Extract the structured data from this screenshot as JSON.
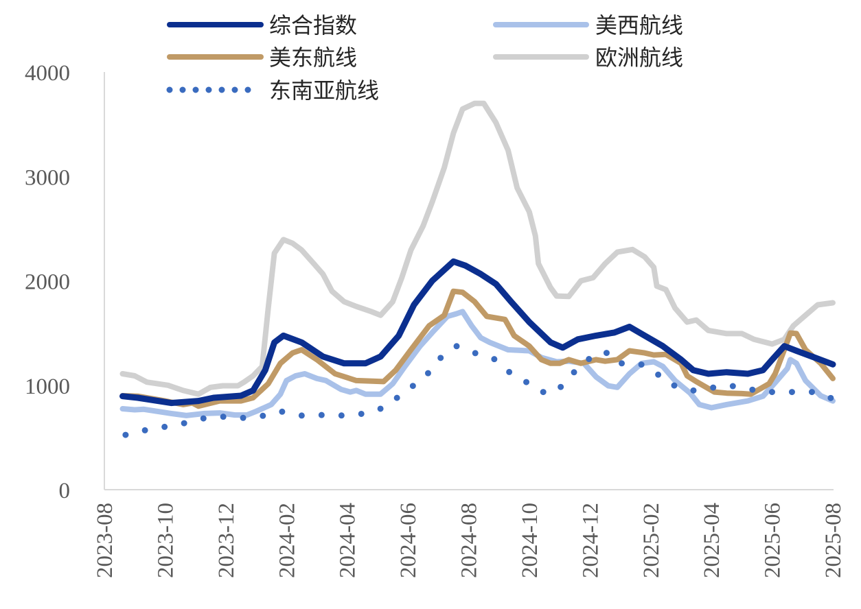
{
  "chart_data": {
    "type": "line",
    "title": "",
    "xlabel": "",
    "ylabel": "",
    "x_unit": "months since 2023-08",
    "xlim": [
      0,
      24
    ],
    "ylim": [
      0,
      4000
    ],
    "yticks": [
      "0",
      "1000",
      "2000",
      "3000",
      "4000"
    ],
    "ytick_values": [
      0,
      1000,
      2000,
      3000,
      4000
    ],
    "xticks": [
      "2023-08",
      "2023-10",
      "2023-12",
      "2024-02",
      "2024-04",
      "2024-06",
      "2024-08",
      "2024-10",
      "2024-12",
      "2025-02",
      "2025-04",
      "2025-06",
      "2025-08"
    ],
    "xtick_values": [
      0,
      2,
      4,
      6,
      8,
      10,
      12,
      14,
      16,
      18,
      20,
      22,
      24
    ],
    "grid": false,
    "legend_position": "top",
    "series": [
      {
        "name": "综合指数",
        "color": "#0b2f8f",
        "style": "solid",
        "x": [
          0.6,
          1.1,
          2.2,
          3.1,
          3.6,
          4.5,
          4.9,
          5.3,
          5.6,
          5.9,
          6.5,
          7.2,
          7.9,
          8.6,
          9.1,
          9.7,
          10.2,
          10.8,
          11.5,
          11.9,
          12.4,
          12.9,
          13.4,
          14.0,
          14.7,
          15.1,
          15.6,
          16.2,
          16.8,
          17.3,
          17.8,
          18.4,
          19.0,
          19.4,
          19.9,
          20.5,
          21.2,
          21.7,
          22.0,
          22.4,
          22.8,
          23.4,
          24.0
        ],
        "y": [
          895,
          880,
          830,
          850,
          880,
          900,
          950,
          1145,
          1410,
          1475,
          1410,
          1275,
          1210,
          1210,
          1275,
          1475,
          1770,
          2000,
          2185,
          2145,
          2065,
          1970,
          1800,
          1605,
          1410,
          1360,
          1440,
          1475,
          1505,
          1560,
          1475,
          1375,
          1245,
          1145,
          1110,
          1125,
          1110,
          1145,
          1245,
          1375,
          1330,
          1265,
          1200
        ]
      },
      {
        "name": "美西航线",
        "color": "#a9c1e9",
        "style": "solid",
        "x": [
          0.6,
          1.0,
          1.3,
          2.2,
          2.7,
          3.3,
          3.8,
          4.3,
          4.7,
          5.0,
          5.5,
          5.8,
          6.0,
          6.3,
          6.6,
          7.0,
          7.3,
          7.8,
          8.1,
          8.3,
          8.6,
          9.1,
          9.5,
          9.9,
          10.4,
          10.8,
          11.3,
          11.6,
          11.8,
          12.1,
          12.4,
          12.7,
          13.3,
          14.0,
          14.4,
          14.9,
          15.3,
          15.8,
          16.2,
          16.6,
          16.9,
          17.3,
          17.7,
          18.1,
          18.4,
          18.8,
          19.3,
          19.6,
          20.0,
          20.5,
          21.2,
          21.7,
          22.1,
          22.5,
          22.6,
          22.8,
          23.1,
          23.6,
          24.0
        ],
        "y": [
          775,
          765,
          770,
          730,
          710,
          730,
          735,
          715,
          715,
          750,
          815,
          915,
          1045,
          1090,
          1110,
          1065,
          1045,
          960,
          935,
          950,
          915,
          915,
          1015,
          1180,
          1375,
          1505,
          1660,
          1685,
          1705,
          1570,
          1455,
          1410,
          1340,
          1330,
          1265,
          1225,
          1230,
          1210,
          1080,
          995,
          980,
          1110,
          1210,
          1225,
          1180,
          1045,
          925,
          815,
          785,
          815,
          850,
          895,
          1025,
          1160,
          1245,
          1210,
          1045,
          900,
          850
        ]
      },
      {
        "name": "美东航线",
        "color": "#c09a66",
        "style": "solid",
        "x": [
          0.6,
          1.1,
          2.0,
          2.6,
          2.9,
          3.1,
          3.8,
          4.5,
          4.9,
          5.4,
          5.8,
          6.2,
          6.5,
          7.0,
          7.6,
          8.3,
          9.2,
          9.6,
          10.1,
          10.7,
          11.2,
          11.5,
          11.8,
          12.2,
          12.6,
          13.2,
          13.5,
          14.0,
          14.4,
          14.7,
          15.0,
          15.3,
          15.7,
          16.2,
          16.5,
          16.9,
          17.3,
          17.8,
          18.1,
          18.5,
          19.0,
          19.2,
          19.5,
          20.1,
          20.5,
          21.0,
          21.3,
          21.9,
          22.1,
          22.4,
          22.6,
          22.8,
          23.1,
          23.6,
          24.0
        ],
        "y": [
          900,
          895,
          850,
          815,
          830,
          800,
          850,
          850,
          880,
          1015,
          1210,
          1310,
          1340,
          1245,
          1110,
          1045,
          1035,
          1145,
          1340,
          1570,
          1670,
          1900,
          1890,
          1800,
          1660,
          1630,
          1475,
          1375,
          1245,
          1210,
          1210,
          1245,
          1210,
          1245,
          1230,
          1245,
          1330,
          1310,
          1290,
          1295,
          1210,
          1090,
          1035,
          935,
          925,
          920,
          915,
          1015,
          1110,
          1340,
          1500,
          1495,
          1340,
          1210,
          1065
        ]
      },
      {
        "name": "欧洲航线",
        "color": "#d0d0d0",
        "style": "solid",
        "x": [
          0.6,
          1.0,
          1.4,
          2.1,
          2.6,
          3.1,
          3.5,
          3.9,
          4.4,
          4.6,
          4.9,
          5.2,
          5.4,
          5.6,
          5.9,
          6.2,
          6.5,
          6.9,
          7.2,
          7.5,
          7.9,
          8.3,
          8.8,
          9.1,
          9.5,
          9.8,
          10.1,
          10.5,
          10.8,
          11.2,
          11.5,
          11.8,
          12.2,
          12.5,
          12.9,
          13.3,
          13.6,
          14.0,
          14.2,
          14.3,
          14.7,
          14.9,
          15.3,
          15.7,
          16.1,
          16.5,
          16.9,
          17.4,
          17.8,
          18.1,
          18.2,
          18.5,
          18.8,
          19.2,
          19.5,
          19.9,
          20.5,
          21.0,
          21.4,
          22.0,
          22.4,
          22.7,
          23.1,
          23.5,
          24.0
        ],
        "y": [
          1110,
          1090,
          1030,
          1000,
          950,
          915,
          980,
          995,
          995,
          1030,
          1090,
          1180,
          1740,
          2265,
          2395,
          2360,
          2295,
          2165,
          2065,
          1900,
          1800,
          1755,
          1705,
          1670,
          1800,
          2030,
          2295,
          2525,
          2755,
          3085,
          3415,
          3645,
          3700,
          3700,
          3515,
          3250,
          2890,
          2660,
          2430,
          2165,
          1935,
          1855,
          1850,
          2000,
          2030,
          2165,
          2275,
          2300,
          2230,
          2130,
          1950,
          1915,
          1740,
          1605,
          1625,
          1525,
          1495,
          1495,
          1440,
          1395,
          1440,
          1570,
          1670,
          1770,
          1790
        ]
      },
      {
        "name": "东南亚航线",
        "color": "#3a6bbf",
        "style": "dotted",
        "x": [
          0.7,
          1.5,
          2.4,
          3.3,
          4.0,
          4.7,
          5.4,
          5.8,
          6.5,
          7.2,
          7.9,
          8.6,
          9.2,
          9.9,
          10.6,
          11.0,
          11.6,
          12.2,
          12.9,
          13.4,
          14.0,
          14.4,
          14.9,
          15.3,
          15.8,
          16.2,
          16.7,
          17.0,
          17.6,
          18.1,
          18.5,
          19.0,
          19.4,
          19.9,
          20.5,
          21.0,
          21.7,
          22.6,
          23.4,
          24.0
        ],
        "y": [
          525,
          580,
          620,
          685,
          700,
          685,
          715,
          750,
          710,
          715,
          710,
          730,
          785,
          935,
          1090,
          1245,
          1375,
          1310,
          1245,
          1110,
          1015,
          935,
          935,
          1080,
          1210,
          1310,
          1310,
          1210,
          1210,
          1145,
          1025,
          975,
          950,
          970,
          1000,
          980,
          935,
          935,
          935,
          870
        ]
      }
    ]
  }
}
